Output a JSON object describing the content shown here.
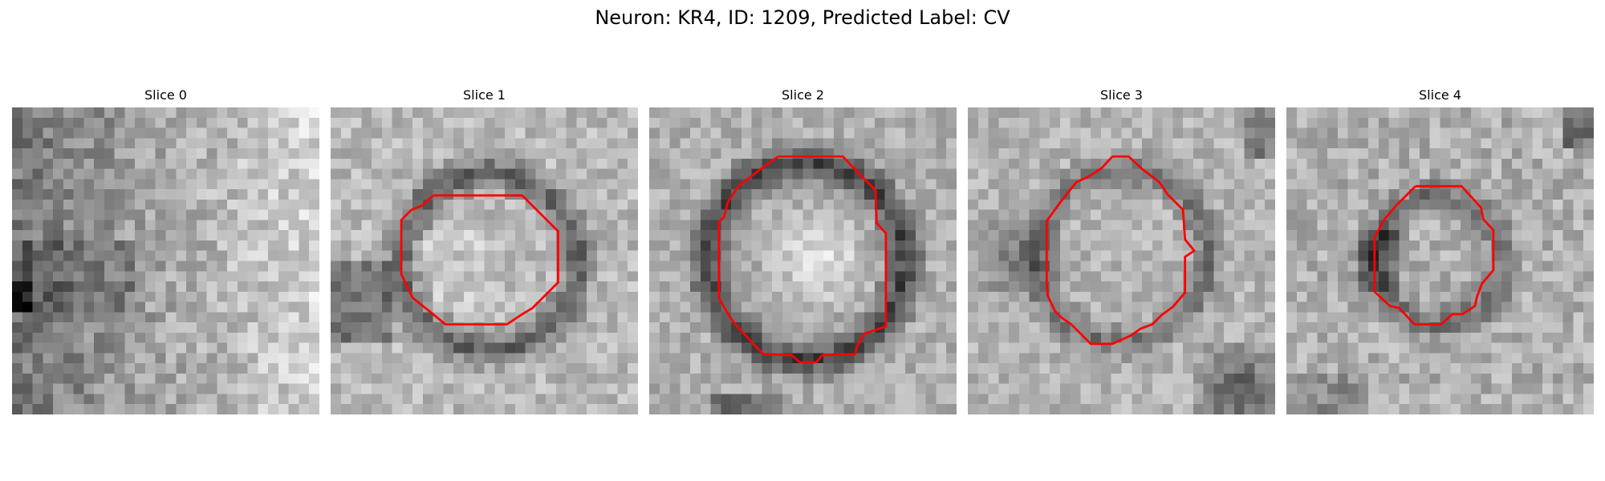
{
  "figure": {
    "title": "Neuron: KR4, ID: 1209, Predicted Label: CV"
  },
  "colors": {
    "background": "#ffffff",
    "contour": "#ff0000"
  },
  "panels": [
    {
      "title": "Slice 0",
      "image": "grayscale-microscopy-patch",
      "has_contour": false
    },
    {
      "title": "Slice 1",
      "image": "grayscale-microscopy-patch",
      "has_contour": true
    },
    {
      "title": "Slice 2",
      "image": "grayscale-microscopy-patch",
      "has_contour": true
    },
    {
      "title": "Slice 3",
      "image": "grayscale-microscopy-patch",
      "has_contour": true
    },
    {
      "title": "Slice 4",
      "image": "grayscale-microscopy-patch",
      "has_contour": true
    }
  ]
}
